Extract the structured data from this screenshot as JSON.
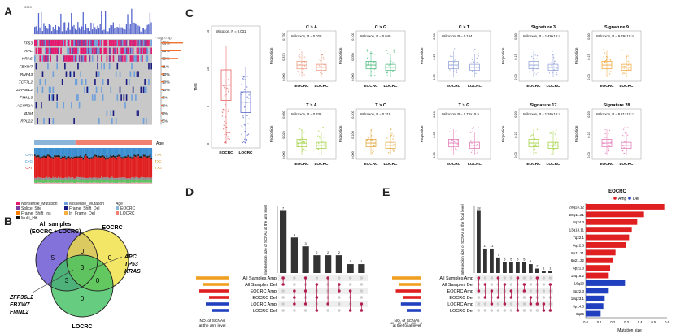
{
  "panels": {
    "A": "A",
    "B": "B",
    "C": "C",
    "D": "D",
    "E": "E"
  },
  "panel_a": {
    "top_axis": "3313",
    "log_label": "~ Log10 (q)",
    "genes": [
      "TP53",
      "APC",
      "KRAS",
      "FBXW7",
      "RNF43",
      "TCF7L2",
      "ZFP36L2",
      "FMNL3",
      "ACVR2A",
      "B2M",
      "RPL22"
    ],
    "percents": [
      "66%",
      "55%",
      "39%",
      "11%",
      "10%",
      "10%",
      "10%",
      "9%",
      "8%",
      "6%",
      "5%"
    ],
    "gene_q": [
      0.9,
      0.8,
      0.7,
      0.15,
      0.1,
      0.12,
      0.08,
      0.1,
      0.06,
      0.05,
      0.04
    ],
    "age_label": "Age",
    "sub_labels": [
      "C>A",
      "C>G",
      "C>T"
    ],
    "sub_labels_r": [
      "T>A",
      "T>C",
      "T>G"
    ],
    "legend": [
      "Nonsense_Mutation",
      "Missense_Mutation",
      "Splice_Site",
      "Frame_Shift_Del",
      "Frame_Shift_Ins",
      "In_Frame_Del",
      "Multi_Hit"
    ],
    "legend_colors": [
      "#e31a6e",
      "#6ea0dc",
      "#7b3fa0",
      "#1a1a80",
      "#ff7f00",
      "#f5b041",
      "#111111"
    ],
    "age_title": "Age",
    "age_legend": [
      "EOCRC",
      "LOCRC"
    ],
    "age_colors": [
      "#8ab4d8",
      "#f08070"
    ]
  },
  "panel_b": {
    "sets": [
      "All samples\n(EOCRC + LOCRC)",
      "EOCRC",
      "LOCRC"
    ],
    "set_all": [
      "All samples",
      "(EOCRC + LOCRC)"
    ],
    "set_eocrc": "EOCRC",
    "set_locrc": "LOCRC",
    "numbers": [
      "5",
      "0",
      "0",
      "3",
      "3",
      "0",
      "0"
    ],
    "right_genes": [
      "APC",
      "TP53",
      "KRAS"
    ],
    "left_genes": [
      "ZFP36L2",
      "FBXW7",
      "FMNL2"
    ]
  },
  "panel_c": {
    "tmb": {
      "title": "",
      "ylabel": "TMB",
      "test": "Wilcoxon, P = 0.031",
      "yticks": [
        "0",
        "5",
        "10",
        "15"
      ],
      "groups": [
        "EOCRC",
        "LOCRC"
      ]
    },
    "plots": [
      {
        "title": "C > A",
        "test": "Wilcoxon, P = 0.029",
        "yticks": [
          "0.000",
          "0.375",
          "0.750"
        ],
        "ylabel": "Proportion",
        "color": "#e9967a"
      },
      {
        "title": "C > G",
        "test": "Wilcoxon, P = 0.940",
        "yticks": [
          "0.000",
          "0.050",
          "0.100"
        ],
        "ylabel": "Proportion",
        "color": "#3cb371"
      },
      {
        "title": "C > T",
        "test": "Wilcoxon, P = 0.184",
        "yticks": [
          "0.00",
          "0.25",
          "0.50"
        ],
        "ylabel": "Proportion",
        "color": "#8a9bd4"
      },
      {
        "title": "Signature 3",
        "test": "Wilcoxon, P = 1.49×10⁻⁵",
        "yticks": [
          "0.00",
          "0.15",
          "0.30"
        ],
        "ylabel": "Proportion",
        "color": "#8a9bd4"
      },
      {
        "title": "Signature 9",
        "test": "Wilcoxon, P = 9.29×10⁻⁶",
        "yticks": [
          "0.00",
          "0.15",
          "0.30"
        ],
        "ylabel": "Proportion",
        "color": "#f0a030"
      },
      {
        "title": "T > A",
        "test": "Wilcoxon, P = 0.336",
        "yticks": [
          "0.000",
          "0.025",
          "0.050"
        ],
        "ylabel": "Proportion",
        "color": "#9acd32"
      },
      {
        "title": "T > C",
        "test": "Wilcoxon, P = 0.318",
        "yticks": [
          "0.000",
          "0.100",
          "0.200"
        ],
        "ylabel": "Proportion",
        "color": "#e0a030"
      },
      {
        "title": "T > G",
        "test": "Wilcoxon, P = 2.74×10⁻⁴",
        "yticks": [
          "0.00",
          "0.05",
          "0.10"
        ],
        "ylabel": "Proportion",
        "color": "#e070b0"
      },
      {
        "title": "Signature 17",
        "test": "Wilcoxon, P = 1.26×10⁻⁵",
        "yticks": [
          "0.00",
          "0.10",
          "0.20"
        ],
        "ylabel": "Proportion",
        "color": "#9acd32"
      },
      {
        "title": "Signature 28",
        "test": "Wilcoxon, P = 9.21×10⁻⁷",
        "yticks": [
          "0.00",
          "0.10",
          "0.20"
        ],
        "ylabel": "Proportion",
        "color": "#e070b0"
      }
    ],
    "groups": [
      "EOCRC",
      "LOCRC"
    ]
  },
  "panel_d": {
    "ylabel": "Intersection size of SCNAs at the arm level",
    "bars": [
      7,
      4,
      3,
      2,
      2,
      2,
      1,
      1
    ],
    "bar_labels": [
      "7",
      "4",
      "3",
      "2",
      "2",
      "2",
      "1",
      "1"
    ],
    "sets": [
      "All Samples Amp",
      "All Samples Del",
      "EOCRC Amp",
      "EOCRC Del",
      "LOCRC Amp",
      "LOCRC Del"
    ],
    "set_colors": [
      "#f0a020",
      "#f0a020",
      "#e02020",
      "#e02020",
      "#2040c0",
      "#2040c0"
    ],
    "set_sizes": [
      10,
      8,
      9,
      6,
      7,
      5
    ],
    "xlabel": "NO. of SCNAs at the arm level",
    "matrix": [
      [
        1,
        1,
        0,
        0,
        0,
        0
      ],
      [
        0,
        0,
        1,
        1,
        1,
        0
      ],
      [
        1,
        0,
        1,
        0,
        1,
        0
      ],
      [
        0,
        1,
        0,
        1,
        0,
        1
      ],
      [
        1,
        0,
        0,
        0,
        1,
        0
      ],
      [
        0,
        1,
        1,
        0,
        0,
        0
      ],
      [
        0,
        0,
        1,
        0,
        0,
        1
      ],
      [
        0,
        0,
        0,
        0,
        1,
        1
      ]
    ]
  },
  "panel_e": {
    "ylabel": "Intersection size of SCNAs at the focal level",
    "bars": [
      28,
      11,
      11,
      7,
      5,
      5,
      5,
      5,
      4,
      2,
      1,
      1
    ],
    "bar_labels": [
      "28",
      "11",
      "11",
      "7",
      "5",
      "5",
      "5",
      "5",
      "4",
      "2",
      "1",
      "1"
    ],
    "sets": [
      "All Samples Amp",
      "All Samples Del",
      "EOCRC Amp",
      "EOCRC Del",
      "LOCRC Amp",
      "LOCRC Del"
    ],
    "set_colors": [
      "#f0a020",
      "#f0a020",
      "#e02020",
      "#e02020",
      "#2040c0",
      "#2040c0"
    ],
    "set_sizes": [
      40,
      30,
      35,
      25,
      28,
      20
    ],
    "xlabel": "NO. of SCNAs at the focal level",
    "axis_ticks": [
      "40",
      "30",
      "20",
      "10",
      "0"
    ],
    "matrix": [
      [
        1,
        0,
        1,
        0,
        0,
        0
      ],
      [
        0,
        1,
        0,
        1,
        0,
        0
      ],
      [
        0,
        0,
        1,
        0,
        1,
        0
      ],
      [
        1,
        0,
        0,
        1,
        0,
        0
      ],
      [
        0,
        1,
        0,
        0,
        1,
        0
      ],
      [
        0,
        0,
        1,
        1,
        0,
        0
      ],
      [
        1,
        0,
        0,
        0,
        0,
        1
      ],
      [
        0,
        1,
        1,
        0,
        0,
        0
      ],
      [
        0,
        0,
        0,
        1,
        1,
        0
      ],
      [
        1,
        0,
        0,
        0,
        1,
        0
      ],
      [
        0,
        0,
        0,
        0,
        1,
        1
      ],
      [
        0,
        1,
        0,
        0,
        0,
        1
      ]
    ]
  },
  "eocrc_chart": {
    "title": "EOCRC",
    "legend_amp": "Amp",
    "legend_del": "Del",
    "amp_color": "#e02020",
    "del_color": "#2040c0",
    "xlabel": "Mutation size",
    "xticks": [
      "0.0",
      "0.1",
      "0.2",
      "0.3",
      "0.4",
      "0.5",
      "0.6"
    ]
  },
  "chart_data": {
    "type": "bar",
    "title": "EOCRC",
    "xlabel": "Mutation size",
    "categories": [
      "20q13.12",
      "20q11.21",
      "8q24.3",
      "13q14.11",
      "7q22.1",
      "8q22.3",
      "8p11.21",
      "6p21.32",
      "6p21.3",
      "15q15.2",
      "16q23",
      "8p22.3",
      "10q23.1",
      "3p14.3",
      "6q26"
    ],
    "series": [
      {
        "name": "Amp",
        "values": [
          0.58,
          0.43,
          0.38,
          0.34,
          0.32,
          0.3,
          0.22,
          0.2,
          0.18,
          0.17,
          0,
          0,
          0,
          0,
          0
        ]
      },
      {
        "name": "Del",
        "values": [
          0,
          0,
          0,
          0,
          0,
          0,
          0,
          0,
          0,
          0,
          0.29,
          0.17,
          0.14,
          0.13,
          0.11
        ]
      }
    ],
    "xlim": [
      0,
      0.6
    ]
  }
}
